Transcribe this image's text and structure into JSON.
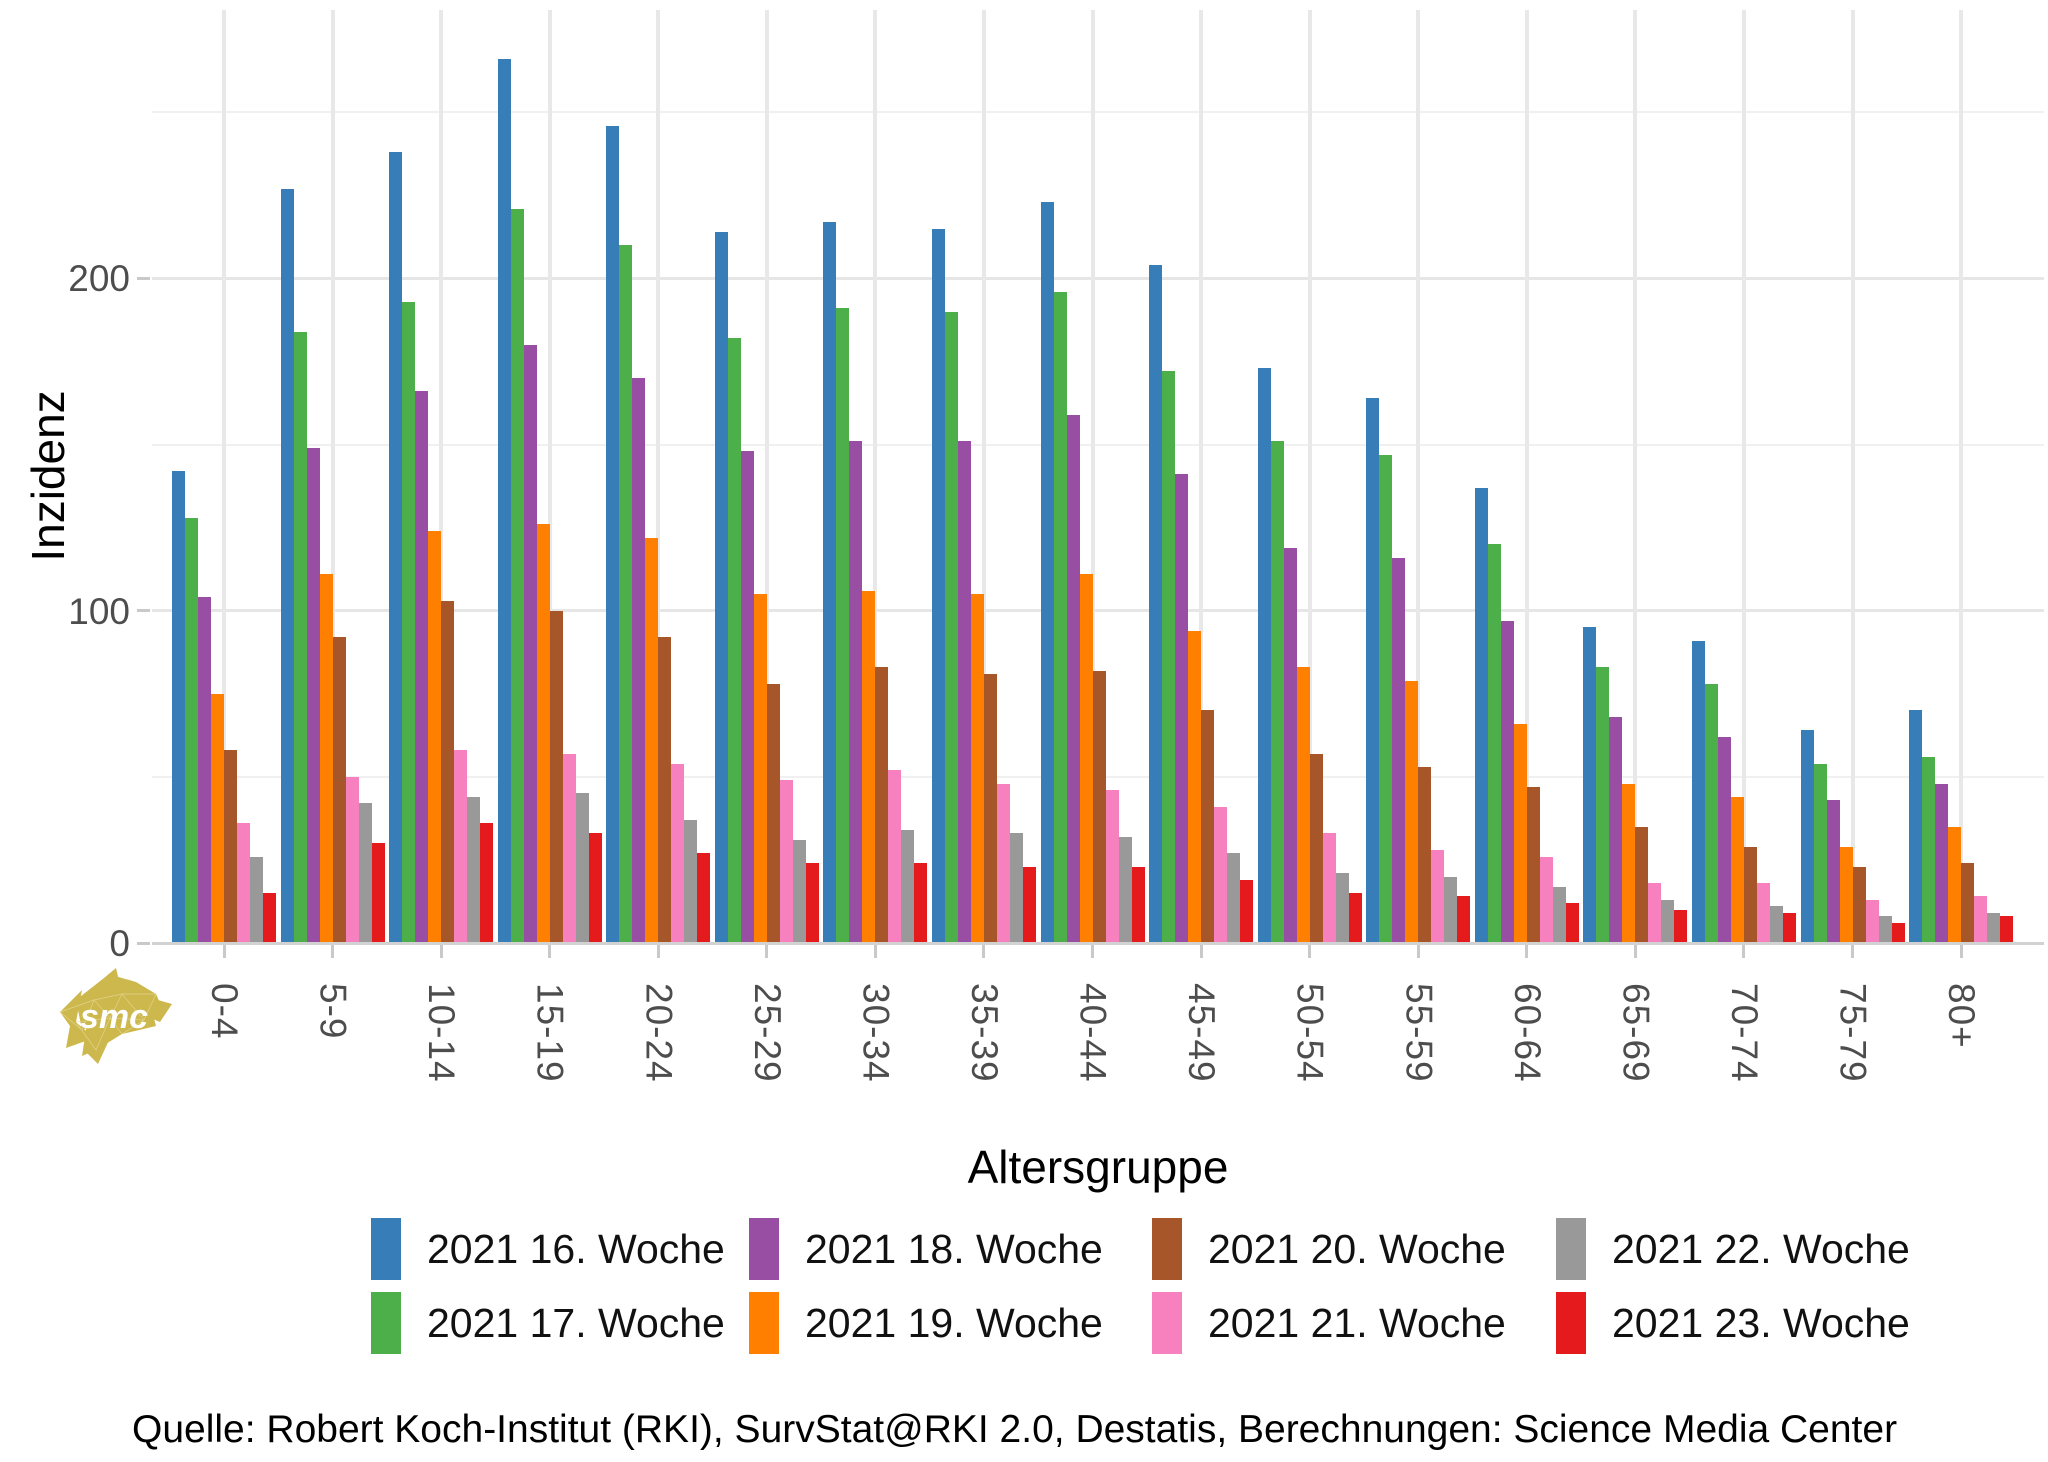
{
  "chart_data": {
    "type": "bar",
    "title": "",
    "xlabel": "Altersgruppe",
    "ylabel": "Inzidenz",
    "ylim": [
      0,
      280
    ],
    "y_major_ticks": [
      0,
      100,
      200
    ],
    "y_minor_ticks": [
      50,
      150,
      250
    ],
    "grid": "on",
    "legend_position": "bottom",
    "categories": [
      "0-4",
      "5-9",
      "10-14",
      "15-19",
      "20-24",
      "25-29",
      "30-34",
      "35-39",
      "40-44",
      "45-49",
      "50-54",
      "55-59",
      "60-64",
      "65-69",
      "70-74",
      "75-79",
      "80+"
    ],
    "series": [
      {
        "name": "2021 16. Woche",
        "color": "#377EB8",
        "values": [
          142,
          227,
          238,
          266,
          246,
          214,
          217,
          215,
          223,
          204,
          173,
          164,
          137,
          95,
          91,
          64,
          70
        ]
      },
      {
        "name": "2021 17. Woche",
        "color": "#4DAF4A",
        "values": [
          128,
          184,
          193,
          221,
          210,
          182,
          191,
          190,
          196,
          172,
          151,
          147,
          120,
          83,
          78,
          54,
          56
        ]
      },
      {
        "name": "2021 18. Woche",
        "color": "#984EA3",
        "values": [
          104,
          149,
          166,
          180,
          170,
          148,
          151,
          151,
          159,
          141,
          119,
          116,
          97,
          68,
          62,
          43,
          48
        ]
      },
      {
        "name": "2021 19. Woche",
        "color": "#FF7F00",
        "values": [
          75,
          111,
          124,
          126,
          122,
          105,
          106,
          105,
          111,
          94,
          83,
          79,
          66,
          48,
          44,
          29,
          35
        ]
      },
      {
        "name": "2021 20. Woche",
        "color": "#A65628",
        "values": [
          58,
          92,
          103,
          100,
          92,
          78,
          83,
          81,
          82,
          70,
          57,
          53,
          47,
          35,
          29,
          23,
          24
        ]
      },
      {
        "name": "2021 21. Woche",
        "color": "#F781BF",
        "values": [
          36,
          50,
          58,
          57,
          54,
          49,
          52,
          48,
          46,
          41,
          33,
          28,
          26,
          18,
          18,
          13,
          14
        ]
      },
      {
        "name": "2021 22. Woche",
        "color": "#999999",
        "values": [
          26,
          42,
          44,
          45,
          37,
          31,
          34,
          33,
          32,
          27,
          21,
          20,
          17,
          13,
          11,
          8,
          9
        ]
      },
      {
        "name": "2021 23. Woche",
        "color": "#E41A1C",
        "values": [
          15,
          30,
          36,
          33,
          27,
          24,
          24,
          23,
          23,
          19,
          15,
          14,
          12,
          10,
          9,
          6,
          8
        ]
      }
    ]
  },
  "axes": {
    "y_title": "Inzidenz",
    "x_title": "Altersgruppe",
    "y_tick_labels": [
      "0",
      "100",
      "200"
    ]
  },
  "legend": {
    "items": [
      {
        "label": "2021 16. Woche",
        "color": "#377EB8"
      },
      {
        "label": "2021 17. Woche",
        "color": "#4DAF4A"
      },
      {
        "label": "2021 18. Woche",
        "color": "#984EA3"
      },
      {
        "label": "2021 19. Woche",
        "color": "#FF7F00"
      },
      {
        "label": "2021 20. Woche",
        "color": "#A65628"
      },
      {
        "label": "2021 21. Woche",
        "color": "#F781BF"
      },
      {
        "label": "2021 22. Woche",
        "color": "#999999"
      },
      {
        "label": "2021 23. Woche",
        "color": "#E41A1C"
      }
    ]
  },
  "footer": {
    "source": "Quelle: Robert Koch-Institut (RKI), SurvStat@RKI 2.0, Destatis, Berechnungen: Science Media Center"
  },
  "logo": {
    "text": "smc",
    "color": "#CDB84D"
  }
}
